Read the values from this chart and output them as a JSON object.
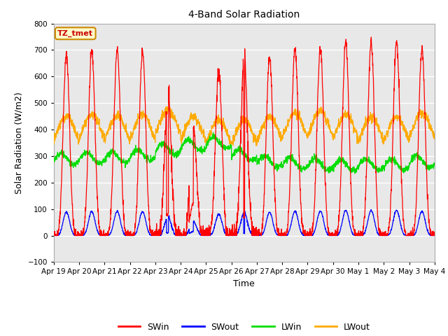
{
  "title": "4-Band Solar Radiation",
  "xlabel": "Time",
  "ylabel": "Solar Radiation (W/m2)",
  "ylim": [
    -100,
    800
  ],
  "yticks": [
    -100,
    0,
    100,
    200,
    300,
    400,
    500,
    600,
    700,
    800
  ],
  "xtick_labels": [
    "Apr 19",
    "Apr 20",
    "Apr 21",
    "Apr 22",
    "Apr 23",
    "Apr 24",
    "Apr 25",
    "Apr 26",
    "Apr 27",
    "Apr 28",
    "Apr 29",
    "Apr 30",
    "May 1",
    "May 2",
    "May 3",
    "May 4"
  ],
  "annotation_text": "TZ_tmet",
  "annotation_bg": "#ffffcc",
  "annotation_border": "#cc8800",
  "colors": {
    "SWin": "#ff0000",
    "SWout": "#0000ff",
    "LWin": "#00dd00",
    "LWout": "#ffaa00"
  },
  "fig_bg": "#ffffff",
  "plot_bg": "#e8e8e8",
  "grid_color": "#ffffff",
  "n_days": 15,
  "points_per_day": 144
}
